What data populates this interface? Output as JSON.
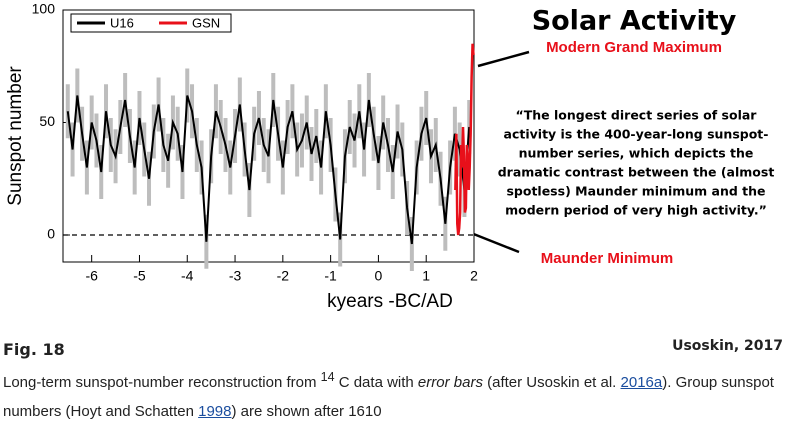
{
  "chart_data": {
    "type": "line",
    "title": "Solar Activity",
    "xlabel": "kyears -BC/AD",
    "ylabel": "Sunspot number",
    "xlim": [
      -6.6,
      2
    ],
    "ylim": [
      -12,
      100
    ],
    "xticks": [
      -6,
      -5,
      -4,
      -3,
      -2,
      -1,
      0,
      1,
      2
    ],
    "yticks": [
      0,
      50,
      100
    ],
    "zero_line": true,
    "legend": "upper left",
    "series": [
      {
        "name": "U16",
        "color": "#000000",
        "error_color": "#bdbdbd",
        "error": 12,
        "x": [
          -6.5,
          -6.4,
          -6.3,
          -6.2,
          -6.1,
          -6.0,
          -5.9,
          -5.8,
          -5.7,
          -5.6,
          -5.5,
          -5.4,
          -5.3,
          -5.2,
          -5.1,
          -5.0,
          -4.9,
          -4.8,
          -4.7,
          -4.6,
          -4.5,
          -4.4,
          -4.3,
          -4.2,
          -4.1,
          -4.0,
          -3.9,
          -3.8,
          -3.7,
          -3.6,
          -3.5,
          -3.4,
          -3.3,
          -3.2,
          -3.1,
          -3.0,
          -2.9,
          -2.8,
          -2.7,
          -2.6,
          -2.5,
          -2.4,
          -2.3,
          -2.2,
          -2.1,
          -2.0,
          -1.9,
          -1.8,
          -1.7,
          -1.6,
          -1.5,
          -1.4,
          -1.3,
          -1.2,
          -1.1,
          -1.0,
          -0.9,
          -0.8,
          -0.7,
          -0.6,
          -0.5,
          -0.4,
          -0.3,
          -0.2,
          -0.1,
          0.0,
          0.1,
          0.2,
          0.3,
          0.4,
          0.5,
          0.6,
          0.7,
          0.8,
          0.9,
          1.0,
          1.1,
          1.2,
          1.3,
          1.4,
          1.5,
          1.6,
          1.7,
          1.8,
          1.9
        ],
        "values": [
          55,
          38,
          62,
          45,
          30,
          50,
          42,
          28,
          55,
          40,
          35,
          48,
          60,
          44,
          30,
          52,
          38,
          25,
          46,
          58,
          40,
          33,
          50,
          45,
          28,
          62,
          55,
          40,
          30,
          -3,
          35,
          55,
          48,
          40,
          30,
          44,
          58,
          38,
          20,
          45,
          52,
          40,
          35,
          60,
          45,
          30,
          48,
          55,
          38,
          42,
          50,
          36,
          44,
          30,
          55,
          40,
          18,
          -2,
          35,
          48,
          42,
          55,
          38,
          60,
          45,
          32,
          50,
          40,
          28,
          46,
          38,
          12,
          -4,
          30,
          45,
          52,
          35,
          40,
          25,
          5,
          30,
          45,
          38,
          20,
          48
        ]
      },
      {
        "name": "GSN",
        "color": "#e8101a",
        "x": [
          1.61,
          1.63,
          1.65,
          1.67,
          1.69,
          1.71,
          1.73,
          1.75,
          1.77,
          1.79,
          1.81,
          1.83,
          1.85,
          1.87,
          1.89,
          1.91,
          1.93,
          1.95,
          1.97,
          1.99
        ],
        "values": [
          20,
          45,
          5,
          0,
          3,
          10,
          40,
          30,
          48,
          35,
          10,
          12,
          40,
          35,
          20,
          30,
          45,
          70,
          85,
          80
        ]
      }
    ],
    "annotations": [
      {
        "text": "Modern Grand Maximum",
        "color": "#e8101a"
      },
      {
        "text": "Maunder Minimum",
        "color": "#e8101a"
      }
    ],
    "quote": [
      "“The longest direct series of solar",
      "activity is the 400-year-long sunspot-",
      "number series, which depicts the",
      "dramatic contrast between the (almost",
      "spotless) Maunder minimum and the",
      "modern period of very high activity.”"
    ]
  },
  "caption": {
    "figure": "Fig. 18",
    "credit": "Usoskin, 2017",
    "text": [
      "Long-term sunspot-number reconstruction from ",
      "14",
      " C data with ",
      "error bars",
      " (after Usoskin et al. ",
      "2016a",
      "). Group sunspot numbers (Hoyt and Schatten ",
      "1998",
      ") are shown after 1610"
    ]
  }
}
